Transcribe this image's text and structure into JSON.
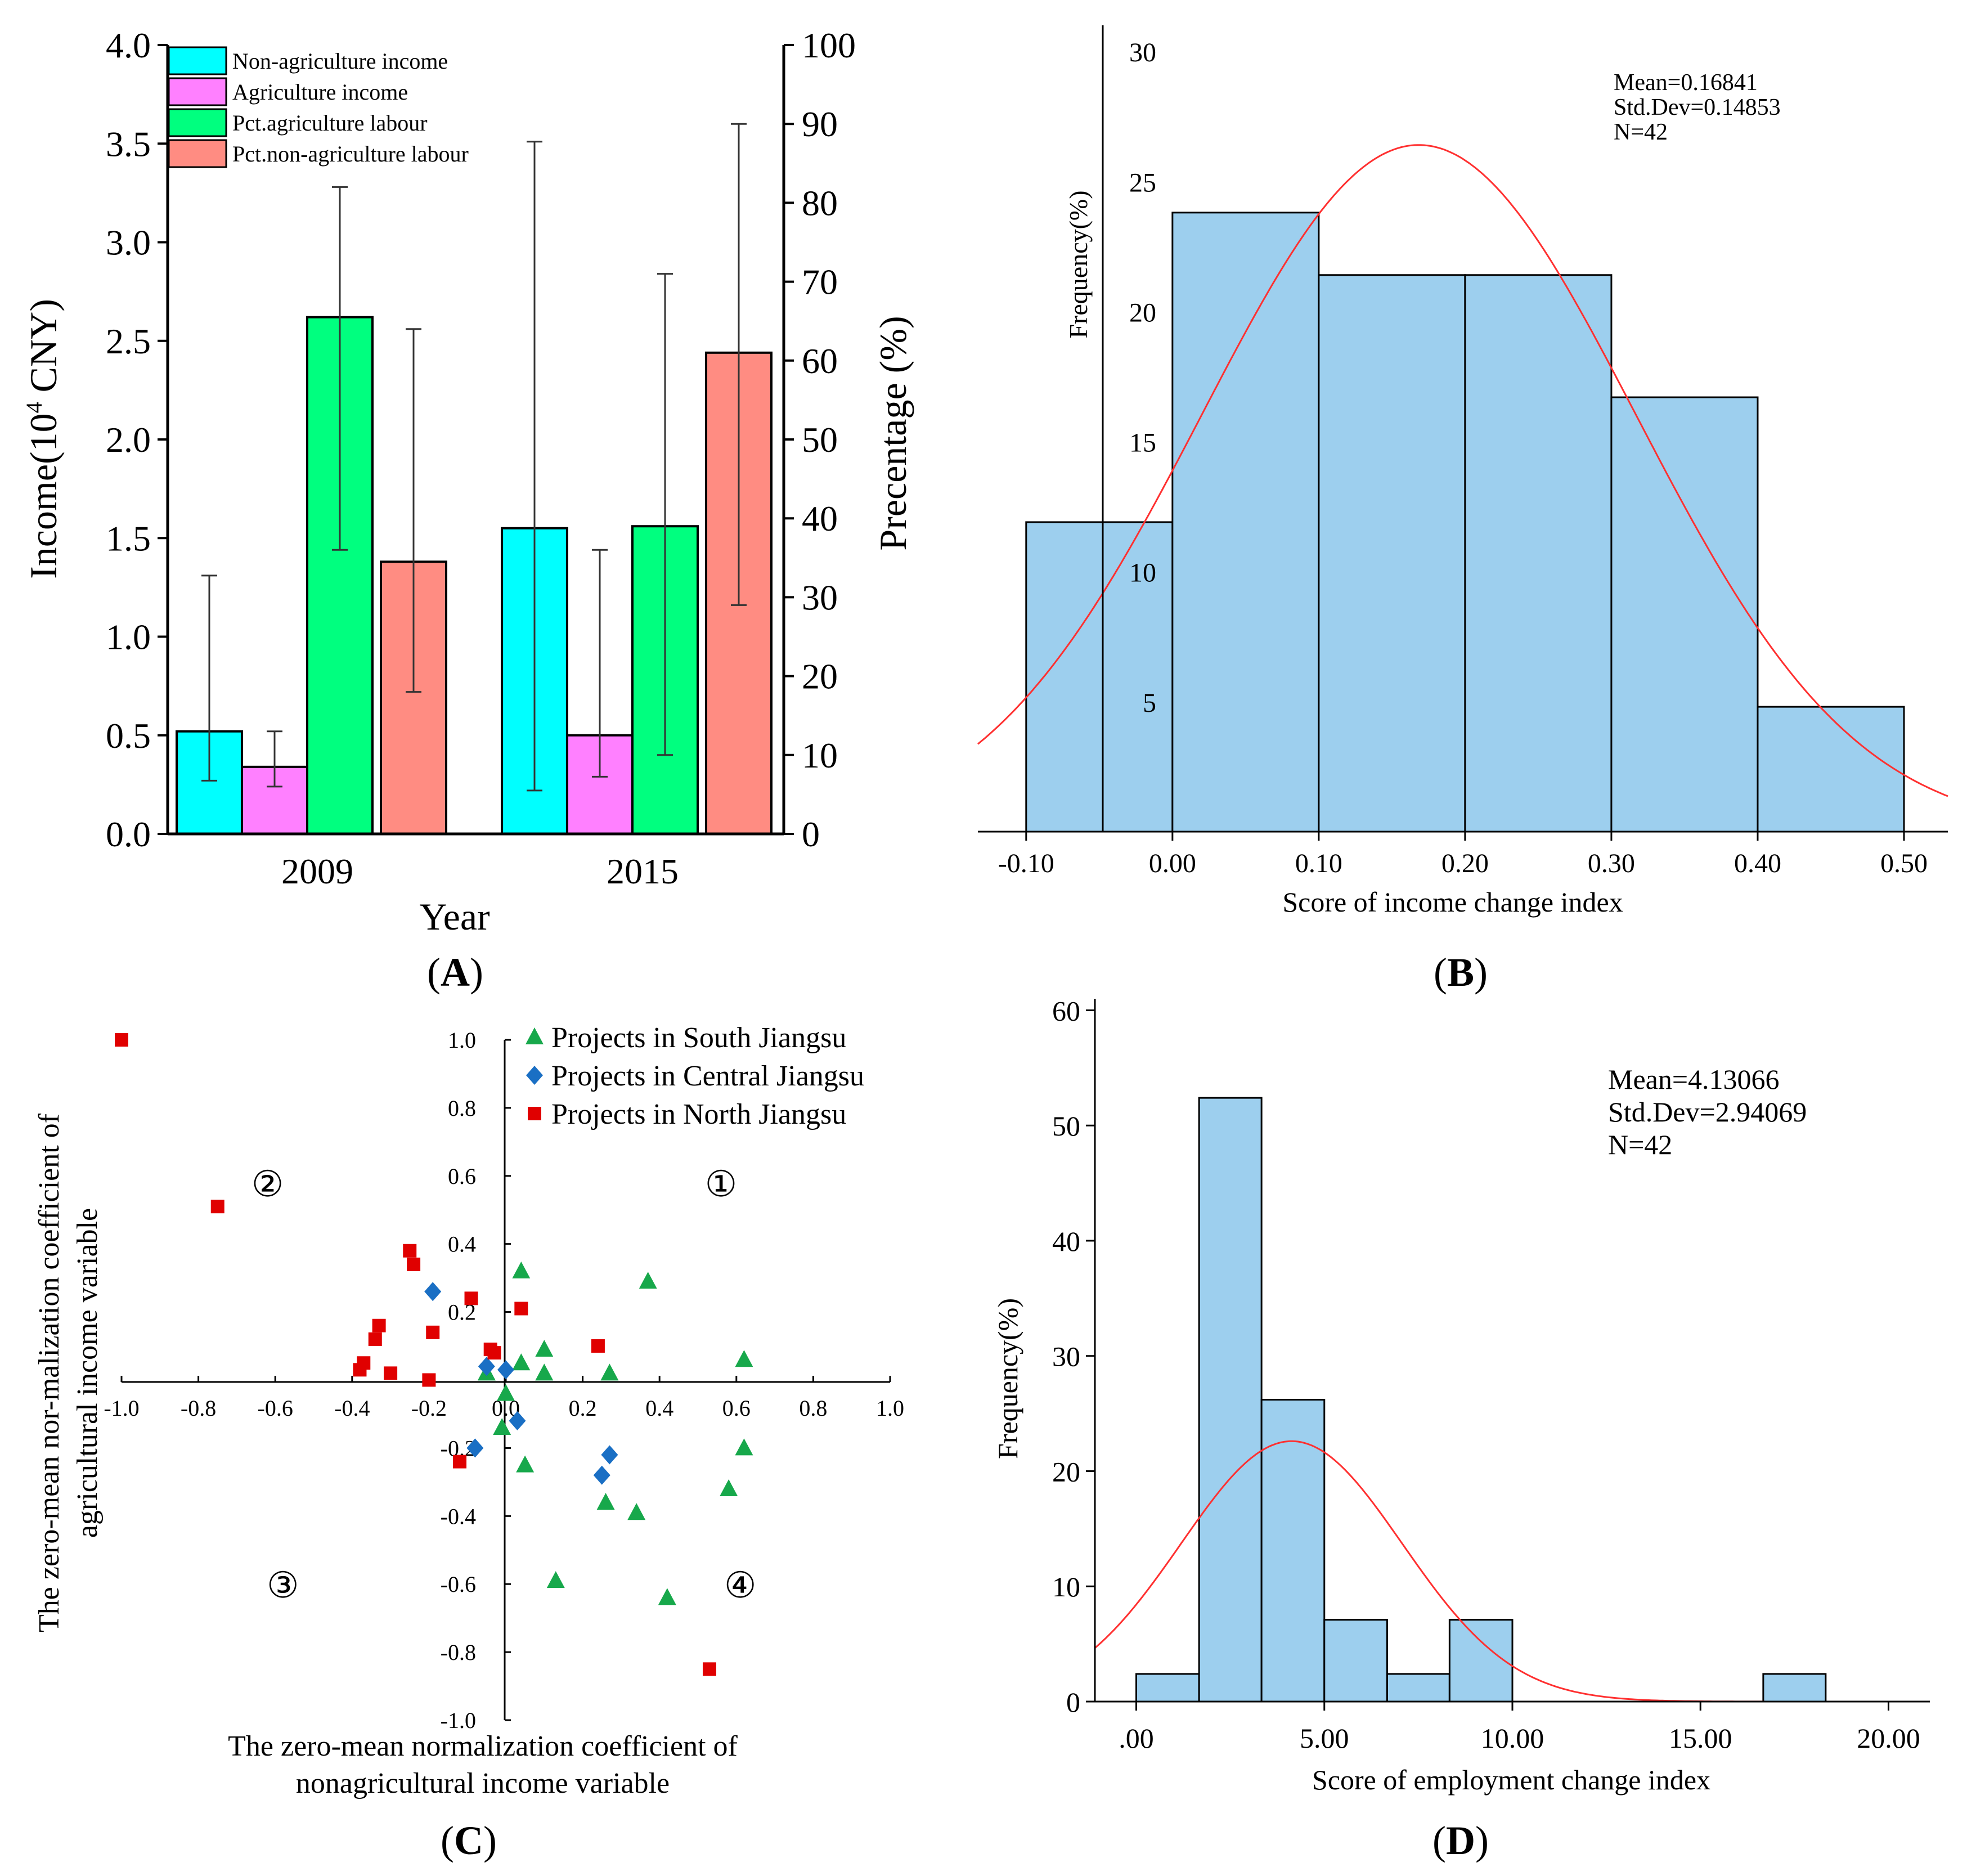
{
  "panel_labels": {
    "a": "A",
    "b": "B",
    "c": "C",
    "d": "D"
  },
  "colors": {
    "cyan": "#00FFFF",
    "magenta": "#FF80FF",
    "green": "#00FF7F",
    "salmon": "#FF8C82",
    "hist": "#9DCFEE",
    "curve": "#FF3030",
    "south": "#17A84B",
    "central": "#1A6FC4",
    "north": "#E00000"
  },
  "chart_data": [
    {
      "id": "A",
      "type": "bar",
      "categories": [
        "2009",
        "2015"
      ],
      "xlabel": "Year",
      "ylabel_prefix": "Income(10",
      "ylabel_sup": "4",
      "ylabel_suffix": " CNY)",
      "y2label": "Precentage (%)",
      "ylim": [
        0,
        4.0
      ],
      "y2lim": [
        0,
        100
      ],
      "yticks": [
        "0.0",
        "0.5",
        "1.0",
        "1.5",
        "2.0",
        "2.5",
        "3.0",
        "3.5",
        "4.0"
      ],
      "y2ticks": [
        "0",
        "10",
        "20",
        "30",
        "40",
        "50",
        "60",
        "70",
        "80",
        "90",
        "100"
      ],
      "series": [
        {
          "name": "Non-agriculture income",
          "axis": "left",
          "values": [
            0.52,
            1.55
          ],
          "err_low": [
            0.27,
            0.22
          ],
          "err_high": [
            1.31,
            3.51
          ]
        },
        {
          "name": "Agriculture income",
          "axis": "left",
          "values": [
            0.34,
            0.5
          ],
          "err_low": [
            0.24,
            0.29
          ],
          "err_high": [
            0.52,
            1.44
          ]
        },
        {
          "name": "Pct.agriculture labour",
          "axis": "right",
          "values": [
            65.5,
            39.0
          ],
          "err_low": [
            36,
            10
          ],
          "err_high": [
            82,
            71
          ]
        },
        {
          "name": "Pct.non-agriculture labour",
          "axis": "right",
          "values": [
            34.5,
            61.0
          ],
          "err_low": [
            18,
            29
          ],
          "err_high": [
            64,
            90
          ]
        }
      ]
    },
    {
      "id": "B",
      "type": "histogram",
      "xlabel": "Score of income change index",
      "ylabel": "Frequency(%)",
      "xticks": [
        "-0.10",
        "0.00",
        "0.10",
        "0.20",
        "0.30",
        "0.40",
        "0.50"
      ],
      "yticks": [
        "5",
        "10",
        "15",
        "20",
        "25",
        "30"
      ],
      "bins": [
        -0.1,
        0.0,
        0.1,
        0.2,
        0.3,
        0.4,
        0.5
      ],
      "values": [
        11.9,
        23.8,
        21.4,
        21.4,
        16.7,
        4.8
      ],
      "xlim": [
        -0.133,
        0.53
      ],
      "ylim": [
        0,
        31
      ],
      "annotation": [
        "Mean=0.16841",
        "Std.Dev=0.14853",
        "N=42"
      ],
      "curve": {
        "mean": 0.16841,
        "sd": 0.14853,
        "peak": 26.4
      }
    },
    {
      "id": "C",
      "type": "scatter",
      "xlabel_line1": "The zero-mean normalization coefficient of",
      "xlabel_line2": "nonagricultural income variable",
      "ylabel_line1": "The zero-mean nor-malization coefficient of",
      "ylabel_line2": "agricultural income variable",
      "xlim": [
        -1.0,
        1.0
      ],
      "ylim": [
        -1.0,
        1.0
      ],
      "xticks": [
        "-1.0",
        "-0.8",
        "-0.6",
        "-0.4",
        "-0.2",
        "0.0",
        "0.2",
        "0.4",
        "0.6",
        "0.8",
        "1.0"
      ],
      "yticks": [
        "-1.0",
        "-0.8",
        "-0.6",
        "-0.4",
        "-0.2",
        "0.2",
        "0.4",
        "0.6",
        "0.8",
        "1.0"
      ],
      "quadrants": [
        "①",
        "②",
        "③",
        "④"
      ],
      "series": [
        {
          "name": "Projects in South Jiangsu",
          "marker": "triangle",
          "points": [
            [
              0.04,
              0.32
            ],
            [
              0.37,
              0.29
            ],
            [
              0.1,
              0.09
            ],
            [
              0.04,
              0.05
            ],
            [
              0.1,
              0.02
            ],
            [
              0.27,
              0.02
            ],
            [
              0.62,
              0.06
            ],
            [
              -0.05,
              0.02
            ],
            [
              0.0,
              -0.04
            ],
            [
              -0.01,
              -0.14
            ],
            [
              0.05,
              -0.25
            ],
            [
              0.26,
              -0.36
            ],
            [
              0.34,
              -0.39
            ],
            [
              0.58,
              -0.32
            ],
            [
              0.62,
              -0.2
            ],
            [
              0.13,
              -0.59
            ],
            [
              0.42,
              -0.64
            ]
          ]
        },
        {
          "name": "Projects in Central Jiangsu",
          "marker": "diamond",
          "points": [
            [
              -0.19,
              0.26
            ],
            [
              -0.05,
              0.04
            ],
            [
              0.0,
              0.03
            ],
            [
              0.03,
              -0.12
            ],
            [
              -0.08,
              -0.2
            ],
            [
              0.27,
              -0.22
            ],
            [
              0.25,
              -0.28
            ]
          ]
        },
        {
          "name": "Projects in North Jiangsu",
          "marker": "square",
          "points": [
            [
              -1.0,
              1.0
            ],
            [
              -0.75,
              0.51
            ],
            [
              -0.25,
              0.38
            ],
            [
              -0.24,
              0.34
            ],
            [
              -0.09,
              0.24
            ],
            [
              0.04,
              0.21
            ],
            [
              -0.33,
              0.16
            ],
            [
              -0.19,
              0.14
            ],
            [
              -0.34,
              0.12
            ],
            [
              0.24,
              0.1
            ],
            [
              -0.04,
              0.09
            ],
            [
              -0.03,
              0.08
            ],
            [
              -0.37,
              0.05
            ],
            [
              -0.38,
              0.03
            ],
            [
              -0.3,
              0.02
            ],
            [
              -0.2,
              0.0
            ],
            [
              -0.12,
              -0.24
            ],
            [
              0.53,
              -0.85
            ]
          ]
        }
      ]
    },
    {
      "id": "D",
      "type": "histogram",
      "xlabel": "Score  of employment change index",
      "ylabel": "Frequency(%)",
      "xticks": [
        ".00",
        "5.00",
        "10.00",
        "15.00",
        "20.00"
      ],
      "yticks": [
        "0",
        "10",
        "20",
        "30",
        "40",
        "50",
        "60"
      ],
      "bins": [
        0.0,
        1.67,
        3.33,
        5.0,
        6.67,
        8.33,
        10.0,
        16.67,
        18.33
      ],
      "bin_values": [
        2.4,
        52.4,
        26.2,
        7.1,
        2.4,
        7.1,
        2.4
      ],
      "bin_edges_used": [
        [
          0.0,
          1.67
        ],
        [
          1.67,
          3.33
        ],
        [
          3.33,
          5.0
        ],
        [
          5.0,
          6.67
        ],
        [
          6.67,
          8.33
        ],
        [
          8.33,
          10.0
        ],
        [
          16.67,
          18.33
        ]
      ],
      "xlim": [
        -1.1,
        21.1
      ],
      "ylim": [
        0,
        61
      ],
      "annotation": [
        "Mean=4.13066",
        "Std.Dev=2.94069",
        "N=42"
      ],
      "curve": {
        "mean": 4.13066,
        "sd": 2.94069,
        "peak": 22.6
      }
    }
  ]
}
